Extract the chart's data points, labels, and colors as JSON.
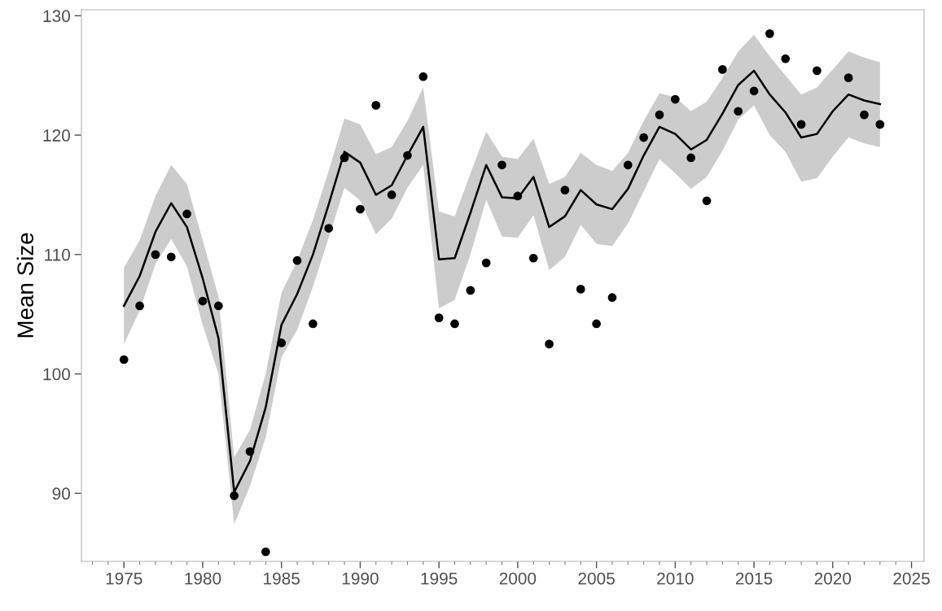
{
  "chart_data": {
    "type": "line",
    "ylabel": "Mean Size",
    "xlim": [
      1972.3,
      2025.8
    ],
    "ylim": [
      84.3,
      130.5
    ],
    "xticks": [
      1975,
      1980,
      1985,
      1990,
      1995,
      2000,
      2005,
      2010,
      2015,
      2020,
      2025
    ],
    "yticks": [
      90,
      100,
      110,
      120,
      130
    ],
    "grid": false,
    "series": [
      {
        "color": "#000000",
        "marker": "none",
        "line_style": "solid",
        "x": [
          1975,
          1976,
          1977,
          1978,
          1979,
          1980,
          1981,
          1982,
          1983,
          1984,
          1985,
          1986,
          1987,
          1988,
          1989,
          1990,
          1991,
          1992,
          1993,
          1994,
          1995,
          1996,
          1997,
          1998,
          1999,
          2000,
          2001,
          2002,
          2003,
          2004,
          2005,
          2006,
          2007,
          2008,
          2009,
          2010,
          2011,
          2012,
          2013,
          2014,
          2015,
          2016,
          2017,
          2018,
          2019,
          2020,
          2021,
          2022,
          2023
        ],
        "values": [
          105.7,
          108.2,
          111.9,
          114.3,
          112.3,
          108.0,
          103.0,
          90.1,
          92.7,
          97.2,
          104.1,
          106.7,
          110.0,
          114.2,
          118.6,
          117.7,
          115.0,
          115.8,
          118.3,
          120.7,
          109.6,
          109.7,
          113.5,
          117.5,
          114.8,
          114.7,
          116.5,
          112.3,
          113.2,
          115.4,
          114.2,
          113.8,
          115.5,
          118.3,
          120.7,
          120.1,
          118.8,
          119.6,
          121.8,
          124.2,
          125.4,
          123.4,
          121.9,
          119.8,
          120.1,
          122.0,
          123.4,
          122.9,
          122.6
        ],
        "lower": [
          102.5,
          105.3,
          109.2,
          111.3,
          109.0,
          104.1,
          100.0,
          87.4,
          90.6,
          94.7,
          101.4,
          103.7,
          107.3,
          111.4,
          115.6,
          114.5,
          111.7,
          113.0,
          115.6,
          117.5,
          105.5,
          106.2,
          110.0,
          114.6,
          111.5,
          111.4,
          113.3,
          108.7,
          109.8,
          112.5,
          110.9,
          110.7,
          112.6,
          115.3,
          118.0,
          116.8,
          115.5,
          116.5,
          118.7,
          121.3,
          122.5,
          120.0,
          118.6,
          116.1,
          116.4,
          118.2,
          119.8,
          119.3,
          119.0
        ],
        "upper": [
          108.9,
          111.2,
          114.9,
          117.5,
          115.9,
          111.2,
          106.5,
          93.0,
          95.3,
          100.0,
          106.8,
          109.5,
          112.9,
          117.0,
          121.4,
          120.9,
          118.4,
          119.0,
          121.2,
          124.0,
          113.6,
          113.2,
          116.8,
          120.3,
          118.2,
          118.0,
          119.7,
          115.9,
          116.5,
          118.5,
          117.5,
          117.0,
          118.5,
          121.2,
          123.5,
          123.2,
          122.0,
          122.8,
          124.8,
          127.0,
          128.4,
          126.6,
          125.0,
          123.4,
          124.0,
          125.5,
          127.0,
          126.5,
          126.1
        ]
      },
      {
        "type": "scatter",
        "color": "#000000",
        "marker": "circle",
        "x": [
          1975,
          1976,
          1977,
          1978,
          1979,
          1980,
          1981,
          1982,
          1983,
          1984,
          1985,
          1986,
          1987,
          1988,
          1989,
          1990,
          1991,
          1992,
          1993,
          1994,
          1995,
          1996,
          1997,
          1998,
          1999,
          2000,
          2001,
          2002,
          2003,
          2004,
          2005,
          2006,
          2007,
          2008,
          2009,
          2010,
          2011,
          2012,
          2013,
          2014,
          2015,
          2016,
          2017,
          2018,
          2019,
          2021,
          2022,
          2023
        ],
        "values": [
          101.2,
          105.7,
          110.0,
          109.8,
          113.4,
          106.1,
          105.7,
          89.8,
          93.5,
          85.1,
          102.6,
          109.5,
          104.2,
          112.2,
          118.1,
          113.8,
          122.5,
          115.0,
          118.3,
          124.9,
          104.7,
          104.2,
          107.0,
          109.3,
          117.5,
          114.9,
          109.7,
          102.5,
          115.4,
          107.1,
          104.2,
          106.4,
          117.5,
          119.8,
          121.7,
          123.0,
          118.1,
          114.5,
          125.5,
          122.0,
          123.7,
          128.5,
          126.4,
          120.9,
          125.4,
          124.8,
          121.7,
          120.9
        ]
      }
    ]
  }
}
